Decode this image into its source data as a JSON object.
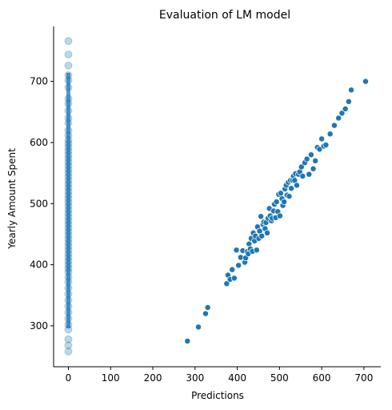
{
  "chart_data": {
    "type": "scatter",
    "title": "Evaluation of LM model",
    "xlabel": "Predictions",
    "ylabel": "Yearly Amount Spent",
    "xlim": [
      -35,
      740
    ],
    "ylim": [
      233,
      790
    ],
    "xticks": [
      0,
      100,
      200,
      300,
      400,
      500,
      600,
      700
    ],
    "yticks": [
      300,
      400,
      500,
      600,
      700
    ],
    "grid": false,
    "legend": "none",
    "colors": {
      "points": "#1f77b4",
      "strip_alpha": "0.3"
    },
    "series": [
      {
        "style": "strip",
        "x": 0,
        "y": [
          766,
          744,
          726,
          710,
          702,
          690,
          672,
          664,
          652,
          640,
          632,
          620,
          612,
          604,
          598,
          592,
          586,
          580,
          574,
          568,
          562,
          556,
          550,
          544,
          538,
          532,
          526,
          520,
          514,
          508,
          502,
          496,
          490,
          484,
          478,
          472,
          466,
          460,
          454,
          448,
          442,
          436,
          430,
          424,
          418,
          412,
          406,
          400,
          394,
          388,
          380,
          372,
          362,
          352,
          342,
          332,
          322,
          312,
          302,
          294,
          278,
          268,
          258
        ]
      },
      {
        "style": "points",
        "x": [
          282,
          308,
          325,
          330,
          375,
          378,
          383,
          388,
          393,
          398,
          403,
          408,
          413,
          418,
          420,
          423,
          426,
          428,
          431,
          433,
          436,
          438,
          441,
          443,
          446,
          448,
          451,
          453,
          456,
          458,
          461,
          463,
          466,
          468,
          471,
          473,
          476,
          478,
          481,
          483,
          486,
          488,
          491,
          493,
          496,
          498,
          501,
          503,
          506,
          508,
          511,
          513,
          516,
          518,
          521,
          523,
          526,
          528,
          531,
          533,
          536,
          538,
          541,
          545,
          548,
          552,
          555,
          560,
          565,
          570,
          575,
          580,
          585,
          590,
          595,
          600,
          605,
          610,
          620,
          630,
          640,
          648,
          656,
          664,
          670,
          704
        ],
        "y": [
          275,
          298,
          320,
          330,
          369,
          383,
          376,
          392,
          378,
          424,
          399,
          412,
          423,
          404,
          411,
          421,
          418,
          434,
          426,
          443,
          422,
          452,
          439,
          447,
          424,
          462,
          443,
          455,
          479,
          447,
          466,
          470,
          459,
          469,
          452,
          476,
          492,
          480,
          472,
          476,
          488,
          499,
          477,
          503,
          487,
          515,
          480,
          517,
          508,
          497,
          503,
          524,
          530,
          514,
          535,
          512,
          538,
          525,
          538,
          545,
          538,
          549,
          530,
          548,
          552,
          560,
          545,
          567,
          573,
          548,
          580,
          557,
          570,
          592,
          589,
          606,
          594,
          596,
          614,
          628,
          640,
          648,
          655,
          667,
          686,
          700
        ]
      }
    ]
  }
}
